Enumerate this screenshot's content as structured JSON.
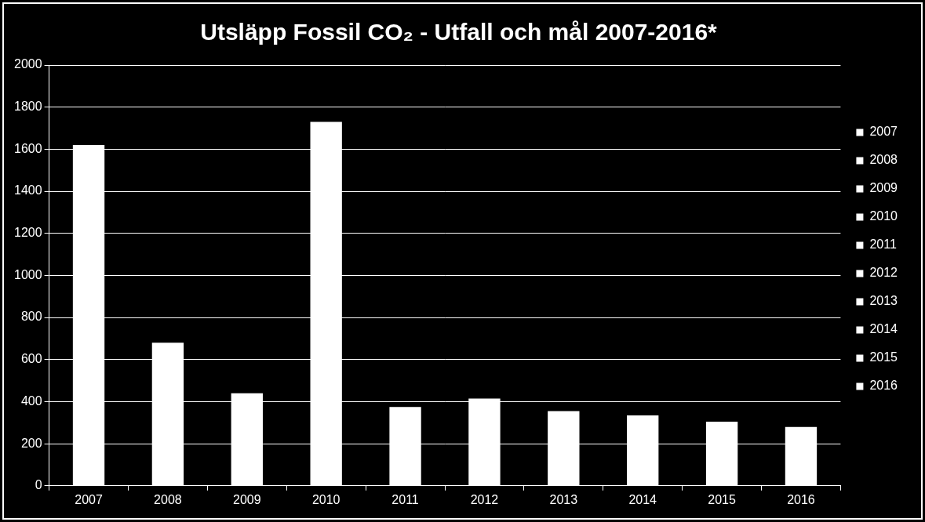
{
  "chart_data": {
    "type": "bar",
    "title": "Utsläpp Fossil CO₂ - Utfall och mål 2007-2016*",
    "categories": [
      "2007",
      "2008",
      "2009",
      "2010",
      "2011",
      "2012",
      "2013",
      "2014",
      "2015",
      "2016"
    ],
    "values": [
      1620,
      680,
      440,
      1730,
      375,
      415,
      355,
      335,
      305,
      280
    ],
    "color": "#ffffff",
    "ylim": [
      0,
      2000
    ],
    "yticks": [
      0,
      200,
      400,
      600,
      800,
      1000,
      1200,
      1400,
      1600,
      1800,
      2000
    ],
    "grid": true,
    "legend": "right"
  }
}
